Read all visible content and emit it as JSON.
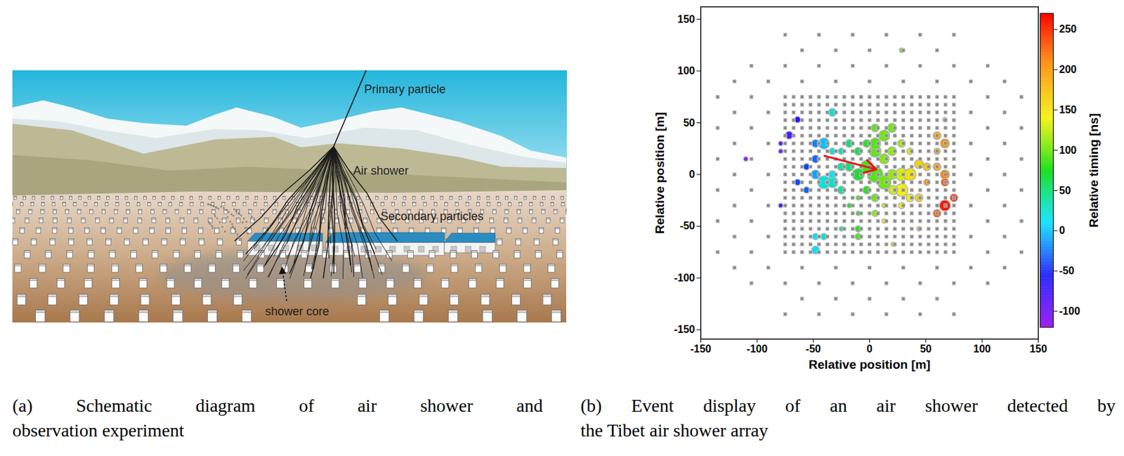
{
  "figure": {
    "panel_a": {
      "labels": {
        "primary_particle": "Primary particle",
        "air_shower": "Air shower",
        "secondary_particles": "Secondary particles",
        "shower_core": "shower core"
      }
    },
    "captions": {
      "a": "(a) Schematic diagram of air shower and observation experiment",
      "b": "(b) Event display of an air shower detected by the Tibet air shower array"
    }
  },
  "chart_data": {
    "type": "scatter",
    "xlabel": "Relative position [m]",
    "ylabel": "Relative position [m]",
    "xlim": [
      -150,
      150
    ],
    "ylim": [
      -159,
      162
    ],
    "xticks": [
      -150,
      -100,
      -50,
      0,
      50,
      100,
      150
    ],
    "yticks": [
      -150,
      -100,
      -50,
      0,
      50,
      100,
      150
    ],
    "detectors": {
      "marker": "square",
      "color": "#8c8c8c",
      "grid": {
        "x": [
          -75,
          -67.5,
          -60,
          -52.5,
          -45,
          -37.5,
          -30,
          -22.5,
          -15,
          -7.5,
          0,
          7.5,
          15,
          22.5,
          30,
          37.5,
          45,
          52.5,
          60,
          67.5,
          75
        ],
        "y": [
          -75,
          -67.5,
          -60,
          -52.5,
          -45,
          -37.5,
          -30,
          -22.5,
          -15,
          -7.5,
          0,
          7.5,
          15,
          22.5,
          30,
          37.5,
          45,
          52.5,
          60,
          67.5,
          75
        ]
      },
      "rows": [
        {
          "y": 135,
          "x": [
            -75,
            -45,
            -15,
            15,
            45,
            75
          ]
        },
        {
          "y": 120,
          "x": [
            -60,
            -30,
            0,
            30,
            60
          ]
        },
        {
          "y": 105,
          "x": [
            -105,
            -75,
            -45,
            -15,
            15,
            45,
            75,
            105
          ]
        },
        {
          "y": 90,
          "x": [
            -120,
            -90,
            -60,
            -30,
            0,
            30,
            60,
            90,
            120
          ]
        },
        {
          "y": 75,
          "x": [
            -135,
            -105,
            105,
            135
          ]
        },
        {
          "y": 60,
          "x": [
            -120,
            -90,
            90,
            120
          ]
        },
        {
          "y": 45,
          "x": [
            -135,
            -105,
            105,
            135
          ]
        },
        {
          "y": 30,
          "x": [
            -120,
            -90,
            90,
            120
          ]
        },
        {
          "y": 15,
          "x": [
            -135,
            -105,
            105,
            135
          ]
        },
        {
          "y": 0,
          "x": [
            -120,
            -90,
            90,
            120
          ]
        },
        {
          "y": -15,
          "x": [
            -135,
            -105,
            105,
            135
          ]
        },
        {
          "y": -30,
          "x": [
            -120,
            -90,
            90,
            120
          ]
        },
        {
          "y": -45,
          "x": [
            -135,
            -105,
            105,
            135
          ]
        },
        {
          "y": -60,
          "x": [
            -120,
            -90,
            90,
            120
          ]
        },
        {
          "y": -75,
          "x": [
            -135,
            -105,
            105,
            135
          ]
        },
        {
          "y": -90,
          "x": [
            -120,
            -90,
            -60,
            -30,
            0,
            30,
            60,
            90,
            120
          ]
        },
        {
          "y": -105,
          "x": [
            -105,
            -75,
            -45,
            -15,
            15,
            45,
            75,
            105
          ]
        },
        {
          "y": -120,
          "x": [
            -60,
            -30,
            0,
            30,
            60
          ]
        },
        {
          "y": -135,
          "x": [
            -75,
            -45,
            -15,
            15,
            45,
            75
          ]
        }
      ]
    },
    "hits": {
      "marker": "circle",
      "x": [
        28.5,
        -33,
        -64,
        -71.5,
        -79,
        -79,
        -110,
        -48,
        -40.5,
        -48,
        -33,
        -25,
        -56,
        -48,
        -33,
        -64,
        -40.5,
        -33,
        -56,
        -79,
        -18,
        -10,
        -18,
        -10,
        -2.5,
        5,
        5,
        20,
        13,
        5,
        13,
        20,
        -2.5,
        5,
        13,
        20,
        28.5,
        36,
        44,
        28.5,
        21,
        51,
        60,
        67,
        60,
        67,
        67,
        67,
        75,
        67,
        60,
        51,
        44,
        36,
        28.5,
        5,
        -10,
        -10,
        -10,
        -10,
        5,
        13,
        21,
        -48,
        -40.5,
        -48,
        -25,
        44,
        -25,
        -2.5,
        -18,
        13,
        36,
        28.5,
        -25,
        60
      ],
      "y": [
        120,
        60,
        53,
        38,
        30,
        22.5,
        15,
        30,
        30,
        15,
        22.5,
        22.5,
        7.5,
        0,
        0,
        -7.5,
        -7.5,
        -7.5,
        -15,
        -30,
        30,
        22.5,
        7.5,
        0,
        30,
        30,
        45,
        45,
        37.5,
        22.5,
        15,
        22.5,
        7.5,
        0,
        -7.5,
        0,
        0,
        0,
        10,
        -15,
        -15,
        7.5,
        7.5,
        30,
        37.5,
        53,
        0,
        -7.5,
        -22.5,
        -30,
        -37.5,
        -7.5,
        -22.5,
        -22.5,
        -30,
        -22.5,
        -22.5,
        -37.5,
        -52.5,
        -60,
        -37.5,
        -45,
        -67.5,
        -60,
        -60,
        -73,
        -52.5,
        -52.5,
        -15,
        -15,
        -30,
        -30,
        22.5,
        30,
        7.5,
        22.5
      ],
      "timing": [
        100,
        20,
        -60,
        -80,
        -90,
        -100,
        -115,
        -20,
        0,
        -30,
        20,
        30,
        -40,
        -10,
        10,
        -40,
        20,
        25,
        -30,
        -80,
        50,
        60,
        50,
        70,
        80,
        90,
        95,
        100,
        100,
        95,
        105,
        110,
        85,
        90,
        100,
        110,
        130,
        150,
        160,
        140,
        130,
        170,
        190,
        200,
        190,
        180,
        210,
        230,
        250,
        260,
        230,
        200,
        160,
        140,
        140,
        100,
        90,
        80,
        80,
        90,
        110,
        150,
        160,
        10,
        20,
        10,
        40,
        190,
        40,
        80,
        70,
        120,
        130,
        115,
        40,
        200
      ],
      "density": [
        1,
        3,
        2,
        3,
        1,
        1,
        1,
        3,
        6,
        3,
        2,
        2,
        2,
        4,
        3,
        2,
        8,
        6,
        2,
        1,
        3,
        3,
        4,
        7,
        3,
        6,
        3,
        4,
        6,
        7,
        5,
        4,
        8,
        12,
        9,
        5,
        8,
        7,
        4,
        8,
        4,
        3,
        3,
        4,
        3,
        1,
        4,
        3,
        3,
        6,
        3,
        2,
        3,
        3,
        2,
        3,
        1,
        1,
        2,
        2,
        2,
        1,
        1,
        2,
        2,
        3,
        1,
        1,
        3,
        3,
        1,
        1,
        2,
        3,
        3,
        2
      ]
    },
    "colorbar": {
      "label": "Relative timing [ns]",
      "range": [
        -120,
        270
      ],
      "ticks": [
        -100,
        -50,
        0,
        50,
        100,
        150,
        200,
        250
      ]
    },
    "arrow": {
      "x1": -40,
      "y1": 18,
      "x2": 6,
      "y2": 5,
      "color": "#e8141b"
    }
  }
}
